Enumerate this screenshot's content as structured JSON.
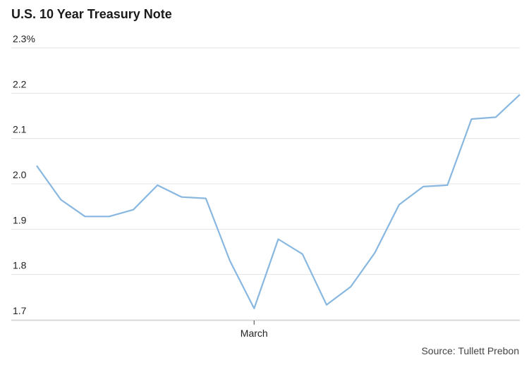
{
  "title": "U.S. 10 Year Treasury Note",
  "source": "Source: Tullett Prebon",
  "chart_data": {
    "type": "line",
    "title": "U.S. 10 Year Treasury Note",
    "xlabel": "",
    "ylabel": "",
    "ylim": [
      1.68,
      2.3
    ],
    "yticks": [
      {
        "value": 2.3,
        "label": "2.3%"
      },
      {
        "value": 2.2,
        "label": "2.2"
      },
      {
        "value": 2.1,
        "label": "2.1"
      },
      {
        "value": 2.0,
        "label": "2.0"
      },
      {
        "value": 1.9,
        "label": "1.9"
      },
      {
        "value": 1.8,
        "label": "1.8"
      },
      {
        "value": 1.7,
        "label": "1.7"
      }
    ],
    "xticks": [
      {
        "index": 9,
        "label": "March"
      }
    ],
    "grid": true,
    "color": "#88b7e0",
    "series": [
      {
        "values": [
          2.04,
          1.965,
          1.928,
          1.928,
          1.943,
          1.997,
          1.971,
          1.968,
          1.83,
          1.725,
          1.878,
          1.845,
          1.733,
          1.773,
          1.848,
          1.954,
          1.994,
          1.997,
          2.143,
          2.147,
          2.197
        ]
      }
    ]
  }
}
